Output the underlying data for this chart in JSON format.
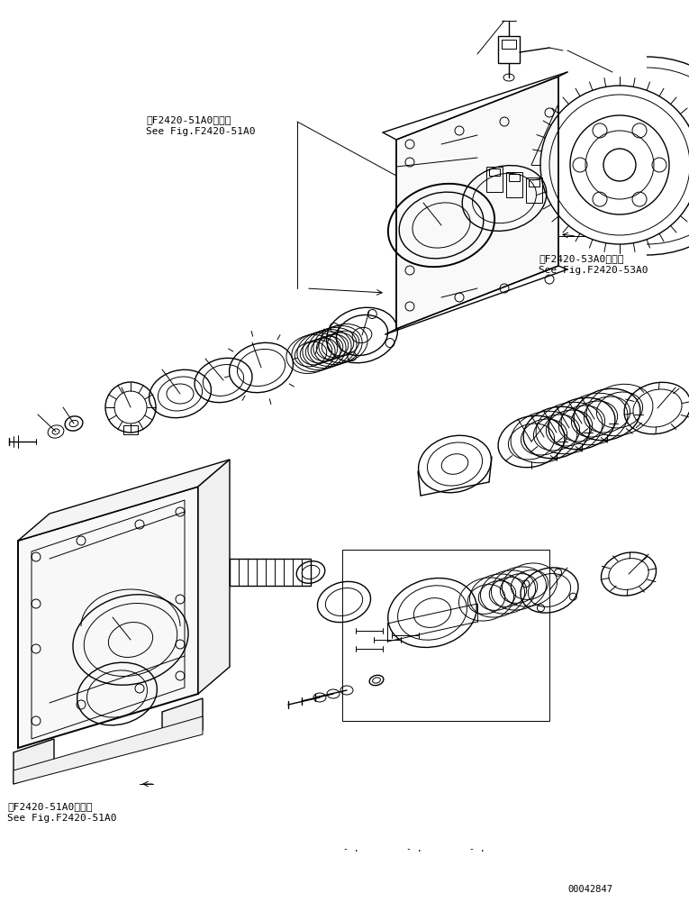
{
  "bg_color": "#ffffff",
  "line_color": "#000000",
  "fig_width": 7.65,
  "fig_height": 10.01,
  "dpi": 100,
  "text_upper_left": "第F2420-51A0図参照\nSee Fig.F2420-51A0",
  "text_upper_right": "第F2420-53A0図参照\nSee Fig.F2420-53A0",
  "text_lower_left": "第F2420-51A0図参照\nSee Fig.F2420-51A0",
  "text_code": "00042847"
}
